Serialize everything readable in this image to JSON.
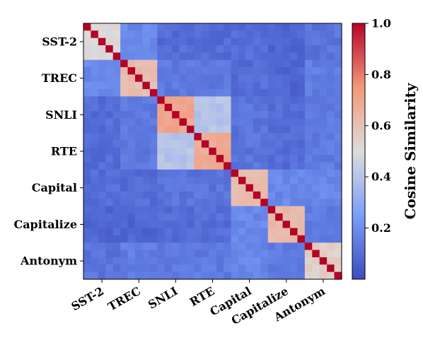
{
  "chart_data": {
    "type": "heatmap",
    "title": "",
    "xlabel": "",
    "ylabel": "",
    "categories": [
      "SST-2",
      "TREC",
      "SNLI",
      "RTE",
      "Capital",
      "Capitalize",
      "Antonym"
    ],
    "groups": [
      {
        "name": "SST-2",
        "size": 5
      },
      {
        "name": "TREC",
        "size": 5
      },
      {
        "name": "SNLI",
        "size": 5
      },
      {
        "name": "RTE",
        "size": 5
      },
      {
        "name": "Capital",
        "size": 5
      },
      {
        "name": "Capitalize",
        "size": 5
      },
      {
        "name": "Antonym",
        "size": 5
      }
    ],
    "block_similarity": [
      [
        0.5,
        0.18,
        0.1,
        0.1,
        0.1,
        0.08,
        0.12
      ],
      [
        0.18,
        0.62,
        0.14,
        0.14,
        0.1,
        0.08,
        0.15
      ],
      [
        0.1,
        0.14,
        0.7,
        0.4,
        0.12,
        0.1,
        0.14
      ],
      [
        0.1,
        0.14,
        0.4,
        0.68,
        0.12,
        0.1,
        0.14
      ],
      [
        0.1,
        0.1,
        0.12,
        0.12,
        0.62,
        0.18,
        0.18
      ],
      [
        0.08,
        0.08,
        0.1,
        0.1,
        0.18,
        0.62,
        0.14
      ],
      [
        0.12,
        0.15,
        0.14,
        0.14,
        0.18,
        0.14,
        0.55
      ]
    ],
    "diagonal_value": 1.0,
    "colorbar": {
      "label": "Cosine Similarity",
      "colormap": "coolwarm",
      "range": [
        0.0,
        1.0
      ],
      "ticks": [
        "0.2",
        "0.4",
        "0.6",
        "0.8",
        "1.0"
      ],
      "tick_values": [
        0.2,
        0.4,
        0.6,
        0.8,
        1.0
      ]
    },
    "colormap_stops": [
      {
        "v": 0.0,
        "color": "#3b4cc0"
      },
      {
        "v": 0.25,
        "color": "#7b9ff9"
      },
      {
        "v": 0.5,
        "color": "#dddcdc"
      },
      {
        "v": 0.75,
        "color": "#f4987a"
      },
      {
        "v": 1.0,
        "color": "#b40426"
      }
    ]
  }
}
